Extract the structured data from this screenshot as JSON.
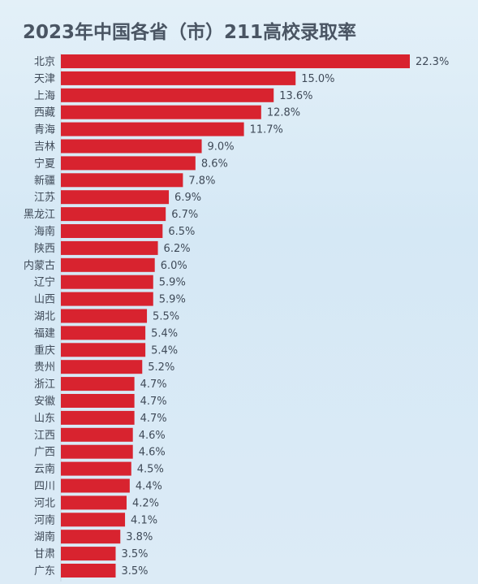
{
  "chart_data": {
    "type": "bar",
    "orientation": "horizontal",
    "title": "2023年中国各省（市）211高校录取率",
    "xlabel": "",
    "ylabel": "",
    "unit": "%",
    "xlim": [
      0,
      22.3
    ],
    "grid": false,
    "legend": "none",
    "categories": [
      "北京",
      "天津",
      "上海",
      "西藏",
      "青海",
      "吉林",
      "宁夏",
      "新疆",
      "江苏",
      "黑龙江",
      "海南",
      "陕西",
      "内蒙古",
      "辽宁",
      "山西",
      "湖北",
      "福建",
      "重庆",
      "贵州",
      "浙江",
      "安徽",
      "山东",
      "江西",
      "广西",
      "云南",
      "四川",
      "河北",
      "河南",
      "湖南",
      "甘肃",
      "广东"
    ],
    "values": [
      22.3,
      15.0,
      13.6,
      12.8,
      11.7,
      9.0,
      8.6,
      7.8,
      6.9,
      6.7,
      6.5,
      6.2,
      6.0,
      5.9,
      5.9,
      5.5,
      5.4,
      5.4,
      5.2,
      4.7,
      4.7,
      4.7,
      4.6,
      4.6,
      4.5,
      4.4,
      4.2,
      4.1,
      3.8,
      3.5,
      3.5
    ],
    "labels": [
      "22.3%",
      "15.0%",
      "13.6%",
      "12.8%",
      "11.7%",
      "9.0%",
      "8.6%",
      "7.8%",
      "6.9%",
      "6.7%",
      "6.5%",
      "6.2%",
      "6.0%",
      "5.9%",
      "5.9%",
      "5.5%",
      "5.4%",
      "5.4%",
      "5.2%",
      "4.7%",
      "4.7%",
      "4.7%",
      "4.6%",
      "4.6%",
      "4.5%",
      "4.4%",
      "4.2%",
      "4.1%",
      "3.8%",
      "3.5%",
      "3.5%"
    ],
    "colors": {
      "bar": "#d8232f",
      "background": "#dcebf6",
      "text": "#3f4a58"
    }
  }
}
